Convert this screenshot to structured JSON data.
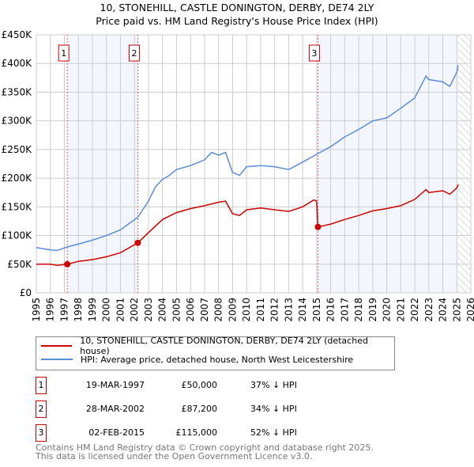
{
  "chart_data": {
    "type": "line",
    "title": "10, STONEHILL, CASTLE DONINGTON, DERBY, DE74 2LY",
    "subtitle": "Price paid vs. HM Land Registry's House Price Index (HPI)",
    "xlim": [
      1995,
      2026
    ],
    "ylim": [
      0,
      450000
    ],
    "x_ticks": [
      "1995",
      "1996",
      "1997",
      "1998",
      "1999",
      "2000",
      "2001",
      "2002",
      "2003",
      "2004",
      "2005",
      "2006",
      "2007",
      "2008",
      "2009",
      "2010",
      "2011",
      "2012",
      "2013",
      "2014",
      "2015",
      "2016",
      "2017",
      "2018",
      "2019",
      "2020",
      "2021",
      "2022",
      "2023",
      "2024",
      "2025",
      "2026"
    ],
    "y_ticks": [
      {
        "v": 0,
        "label": "£0"
      },
      {
        "v": 50000,
        "label": "£50K"
      },
      {
        "v": 100000,
        "label": "£100K"
      },
      {
        "v": 150000,
        "label": "£150K"
      },
      {
        "v": 200000,
        "label": "£200K"
      },
      {
        "v": 250000,
        "label": "£250K"
      },
      {
        "v": 300000,
        "label": "£300K"
      },
      {
        "v": 350000,
        "label": "£350K"
      },
      {
        "v": 400000,
        "label": "£400K"
      },
      {
        "v": 450000,
        "label": "£450K"
      }
    ],
    "grid": true,
    "data_end": 2025.1,
    "series": [
      {
        "name": "10, STONEHILL, CASTLE DONINGTON, DERBY, DE74 2LY (detached house)",
        "color": "#cc0000",
        "x": [
          1995,
          1996,
          1996.5,
          1997.21,
          1998,
          1999,
          2000,
          2001,
          2002.24,
          2003,
          2004,
          2005,
          2006,
          2007,
          2008,
          2008.5,
          2009,
          2009.5,
          2010,
          2011,
          2012,
          2013,
          2014,
          2014.8,
          2015.0,
          2015.09,
          2016,
          2017,
          2018,
          2019,
          2020,
          2021,
          2022,
          2022.8,
          2023,
          2024,
          2024.5,
          2025,
          2025.1
        ],
        "y": [
          50000,
          50000,
          48000,
          50000,
          55000,
          58000,
          63000,
          70000,
          87200,
          105000,
          128000,
          140000,
          147000,
          152000,
          158000,
          160000,
          138000,
          135000,
          145000,
          148000,
          145000,
          142000,
          150000,
          162000,
          160000,
          115000,
          120000,
          128000,
          135000,
          143000,
          147000,
          152000,
          163000,
          180000,
          175000,
          178000,
          172000,
          183000,
          189000
        ]
      },
      {
        "name": "HPI: Average price, detached house, North West Leicestershire",
        "color": "#5b8ed6",
        "x": [
          1995,
          1996,
          1996.5,
          1997.21,
          1998,
          1999,
          2000,
          2001,
          2002.24,
          2003,
          2003.5,
          2004,
          2004.5,
          2005,
          2006,
          2007,
          2007.5,
          2008,
          2008.5,
          2009,
          2009.5,
          2010,
          2011,
          2012,
          2013,
          2014,
          2015.09,
          2016,
          2017,
          2018,
          2019,
          2020,
          2021,
          2022,
          2022.8,
          2023,
          2024,
          2024.5,
          2025,
          2025.1
        ],
        "y": [
          79000,
          75000,
          74000,
          80000,
          85000,
          92000,
          100000,
          110000,
          132000,
          160000,
          185000,
          198000,
          205000,
          215000,
          222000,
          232000,
          245000,
          240000,
          245000,
          210000,
          205000,
          220000,
          222000,
          220000,
          215000,
          228000,
          243000,
          255000,
          272000,
          285000,
          300000,
          305000,
          322000,
          340000,
          378000,
          372000,
          368000,
          360000,
          385000,
          397000
        ]
      }
    ],
    "sales": [
      {
        "num": "1",
        "x": 1997.21,
        "date": "19-MAR-1997",
        "price": "£50,000",
        "value": 50000,
        "hpi": "37% ↓ HPI"
      },
      {
        "num": "2",
        "x": 2002.24,
        "date": "28-MAR-2002",
        "price": "£87,200",
        "value": 87200,
        "hpi": "34% ↓ HPI"
      },
      {
        "num": "3",
        "x": 2015.09,
        "date": "02-FEB-2015",
        "price": "£115,000",
        "value": 115000,
        "hpi": "52% ↓ HPI"
      }
    ]
  },
  "footer": {
    "line1": "Contains HM Land Registry data © Crown copyright and database right 2025.",
    "line2": "This data is licensed under the Open Government Licence v3.0."
  }
}
